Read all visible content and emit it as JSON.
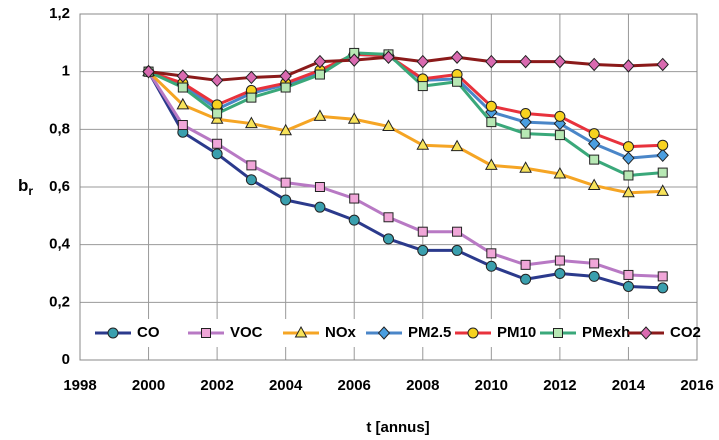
{
  "chart_data": {
    "type": "line",
    "xlabel": "t [annus]",
    "ylabel": {
      "text": "b",
      "subscript": "r"
    },
    "x": [
      2000,
      2001,
      2002,
      2003,
      2004,
      2005,
      2006,
      2007,
      2008,
      2009,
      2010,
      2011,
      2012,
      2013,
      2014,
      2015
    ],
    "xlim": [
      1998,
      2016
    ],
    "xticks": [
      1998,
      2000,
      2002,
      2004,
      2006,
      2008,
      2010,
      2012,
      2014,
      2016
    ],
    "ylim": [
      0,
      1.2
    ],
    "yticks": [
      0,
      {
        "value": 0.2,
        "label": "0,2"
      },
      {
        "value": 0.4,
        "label": "0,4"
      },
      {
        "value": 0.6,
        "label": "0,6"
      },
      {
        "value": 0.8,
        "label": "0,8"
      },
      1,
      {
        "value": 1.2,
        "label": "1,2"
      }
    ],
    "grid": true,
    "legend": "bottom",
    "series": [
      {
        "name": "CO",
        "color": "#2b3a8c",
        "marker_color": "#3a9fae",
        "marker": "circle",
        "values": [
          1,
          0.79,
          0.715,
          0.625,
          0.555,
          0.53,
          0.485,
          0.42,
          0.38,
          0.38,
          0.325,
          0.28,
          0.3,
          0.29,
          0.255,
          0.25
        ]
      },
      {
        "name": "VOC",
        "color": "#b879c4",
        "marker_color": "#f0a6d8",
        "marker": "square",
        "values": [
          1,
          0.815,
          0.75,
          0.675,
          0.615,
          0.6,
          0.56,
          0.495,
          0.445,
          0.445,
          0.37,
          0.33,
          0.345,
          0.335,
          0.295,
          0.29
        ]
      },
      {
        "name": "NOx",
        "color": "#f5a524",
        "marker_color": "#f7e35a",
        "marker": "triangle",
        "values": [
          1,
          0.885,
          0.835,
          0.82,
          0.795,
          0.845,
          0.835,
          0.81,
          0.745,
          0.74,
          0.675,
          0.665,
          0.645,
          0.605,
          0.58,
          0.585
        ]
      },
      {
        "name": "PM2.5",
        "color": "#4a86c8",
        "marker_color": "#4a9ee0",
        "marker": "diamond",
        "values": [
          1,
          0.955,
          0.87,
          0.925,
          0.955,
          1.0,
          1.06,
          1.055,
          0.97,
          0.975,
          0.86,
          0.825,
          0.82,
          0.75,
          0.7,
          0.71
        ]
      },
      {
        "name": "PM10",
        "color": "#e8323c",
        "marker_color": "#f7d21e",
        "marker": "circle",
        "values": [
          1,
          0.96,
          0.885,
          0.935,
          0.96,
          1.005,
          1.06,
          1.055,
          0.975,
          0.99,
          0.88,
          0.855,
          0.845,
          0.785,
          0.74,
          0.745
        ]
      },
      {
        "name": "PMexh",
        "color": "#3aa87a",
        "marker_color": "#b7e8b4",
        "marker": "square",
        "values": [
          1,
          0.945,
          0.855,
          0.91,
          0.945,
          0.99,
          1.065,
          1.06,
          0.95,
          0.965,
          0.825,
          0.785,
          0.78,
          0.695,
          0.64,
          0.65
        ]
      },
      {
        "name": "CO2",
        "color": "#8b1a1a",
        "marker_color": "#d96ab0",
        "marker": "diamond",
        "values": [
          1,
          0.985,
          0.97,
          0.98,
          0.985,
          1.035,
          1.04,
          1.05,
          1.035,
          1.05,
          1.035,
          1.035,
          1.035,
          1.025,
          1.02,
          1.025
        ]
      }
    ]
  }
}
